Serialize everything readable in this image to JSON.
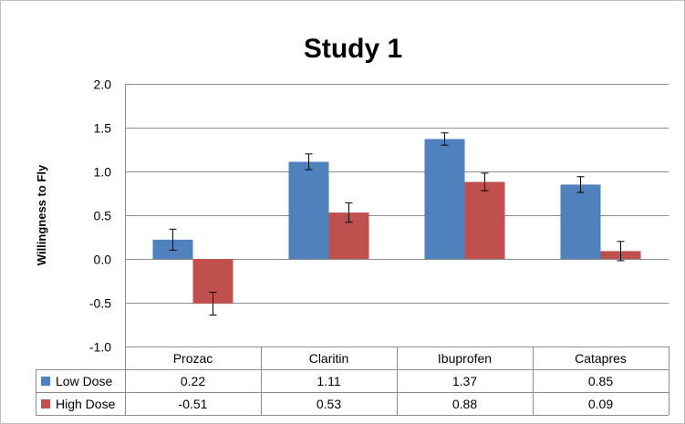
{
  "colors": {
    "low_dose": "#4f81bd",
    "high_dose": "#c0504d",
    "grid": "#8c8c8c",
    "frame": "#bfbfbf"
  },
  "chart_data": {
    "type": "bar",
    "title": "Study 1",
    "ylabel": "Willingness to Fly",
    "xlabel": "",
    "ylim": [
      -1.0,
      2.0
    ],
    "yticks": [
      2.0,
      1.5,
      1.0,
      0.5,
      0.0,
      -0.5,
      -1.0
    ],
    "ytick_labels": [
      "2.0",
      "1.5",
      "1.0",
      "0.5",
      "0.0",
      "-0.5",
      "-1.0"
    ],
    "grid": true,
    "legend_position": "data table (bottom-left)",
    "categories": [
      "Prozac",
      "Claritin",
      "Ibuprofen",
      "Catapres"
    ],
    "series": [
      {
        "name": "Low Dose",
        "values": [
          0.22,
          1.11,
          1.37,
          0.85
        ],
        "value_labels": [
          "0.22",
          "1.11",
          "1.37",
          "0.85"
        ],
        "errors": [
          0.12,
          0.09,
          0.07,
          0.09
        ]
      },
      {
        "name": "High Dose",
        "values": [
          -0.51,
          0.53,
          0.88,
          0.09
        ],
        "value_labels": [
          "-0.51",
          "0.53",
          "0.88",
          "0.09"
        ],
        "errors": [
          0.13,
          0.11,
          0.1,
          0.11
        ]
      }
    ]
  }
}
